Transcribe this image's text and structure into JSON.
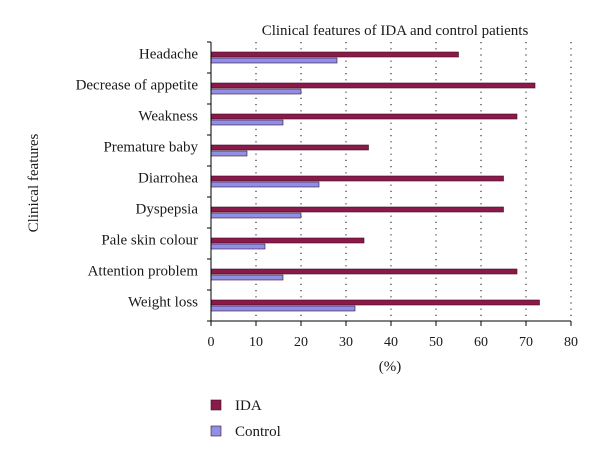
{
  "chart_data": {
    "type": "bar",
    "orientation": "horizontal",
    "title": "Clinical features of IDA and control patients",
    "xlabel": "(%)",
    "ylabel": "Clinical features",
    "xlim": [
      0,
      80
    ],
    "xticks": [
      0,
      10,
      20,
      30,
      40,
      50,
      60,
      70,
      80
    ],
    "grid": "vertical dotted",
    "legend_position": "bottom-left",
    "categories": [
      "Headache",
      "Decrease of appetite",
      "Weakness",
      "Premature baby",
      "Diarrohea",
      "Dyspepsia",
      "Pale skin colour",
      "Attention problem",
      "Weight loss"
    ],
    "series": [
      {
        "name": "IDA",
        "color": "#8b1a4a",
        "values": [
          55,
          72,
          68,
          35,
          65,
          65,
          34,
          68,
          73
        ]
      },
      {
        "name": "Control",
        "color": "#8f8fe8",
        "values": [
          28,
          20,
          16,
          8,
          24,
          20,
          12,
          16,
          32
        ]
      }
    ]
  }
}
